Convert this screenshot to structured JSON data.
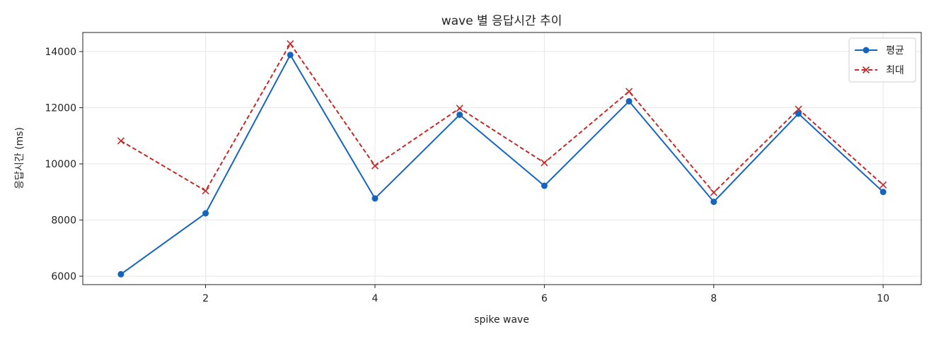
{
  "chart_data": {
    "type": "line",
    "title": "wave 별 응답시간 추이",
    "xlabel": "spike wave",
    "ylabel": "응답시간 (ms)",
    "x": [
      1,
      2,
      3,
      4,
      5,
      6,
      7,
      8,
      9,
      10
    ],
    "xlim": [
      0.55,
      10.45
    ],
    "ylim": [
      5700,
      14680
    ],
    "xticks": [
      2,
      4,
      6,
      8,
      10
    ],
    "yticks": [
      6000,
      8000,
      10000,
      12000,
      14000
    ],
    "grid": true,
    "legend_position": "top-right",
    "series": [
      {
        "name": "평균",
        "color": "#1565c0",
        "line_style": "solid",
        "marker": "circle",
        "values": [
          6070,
          8240,
          13880,
          8770,
          11750,
          9220,
          12230,
          8650,
          11790,
          9000
        ]
      },
      {
        "name": "최대",
        "color": "#c62828",
        "line_style": "dashed",
        "marker": "x",
        "values": [
          10820,
          9040,
          14280,
          9930,
          11980,
          10040,
          12580,
          8980,
          11950,
          9250
        ]
      }
    ]
  }
}
